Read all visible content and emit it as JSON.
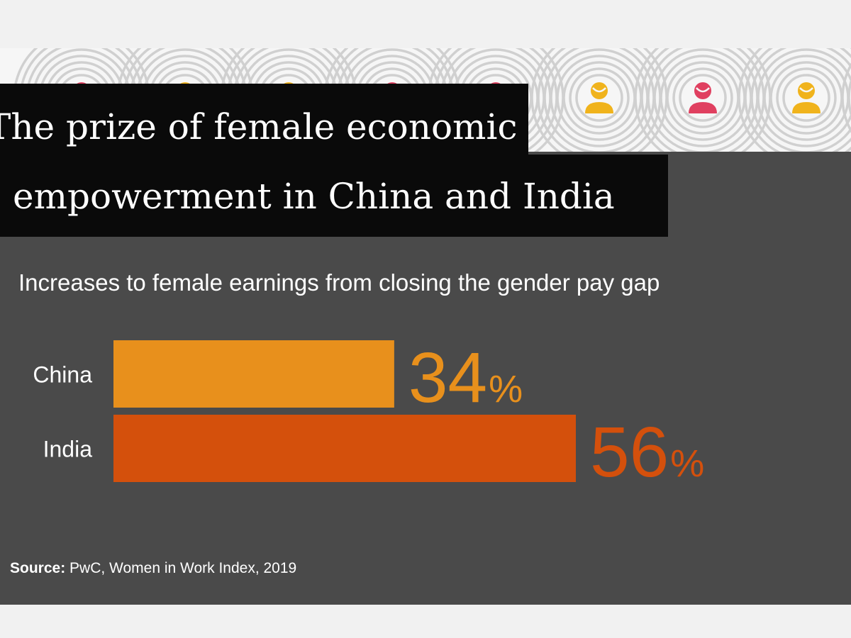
{
  "title": {
    "line1": "The prize of female economic",
    "line2": "empowerment in China and India"
  },
  "subtitle": "Increases to female earnings from closing the gender pay gap",
  "source": {
    "label": "Source:",
    "text": " PwC, Women in Work Index, 2019"
  },
  "colors": {
    "background": "#4a4a4a",
    "title_box": "#0a0a0a",
    "china": "#e8901c",
    "india": "#d4500c",
    "pattern_ring": "#d0d0d0",
    "person_yellow": "#f0b31c",
    "person_pink": "#e04060"
  },
  "pattern_icons": [
    "person-pink-icon",
    "person-yellow-icon",
    "person-yellow-icon",
    "person-pink-icon",
    "person-pink-icon",
    "person-yellow-icon",
    "person-pink-icon",
    "person-yellow-icon"
  ],
  "chart_data": {
    "type": "bar",
    "orientation": "horizontal",
    "categories": [
      "China",
      "India"
    ],
    "values": [
      34,
      56
    ],
    "value_labels": [
      "34",
      "56"
    ],
    "unit": "%",
    "title": "The prize of female economic empowerment in China and India",
    "subtitle": "Increases to female earnings from closing the gender pay gap",
    "xlim": [
      0,
      100
    ],
    "grid": false,
    "legend": "none"
  }
}
